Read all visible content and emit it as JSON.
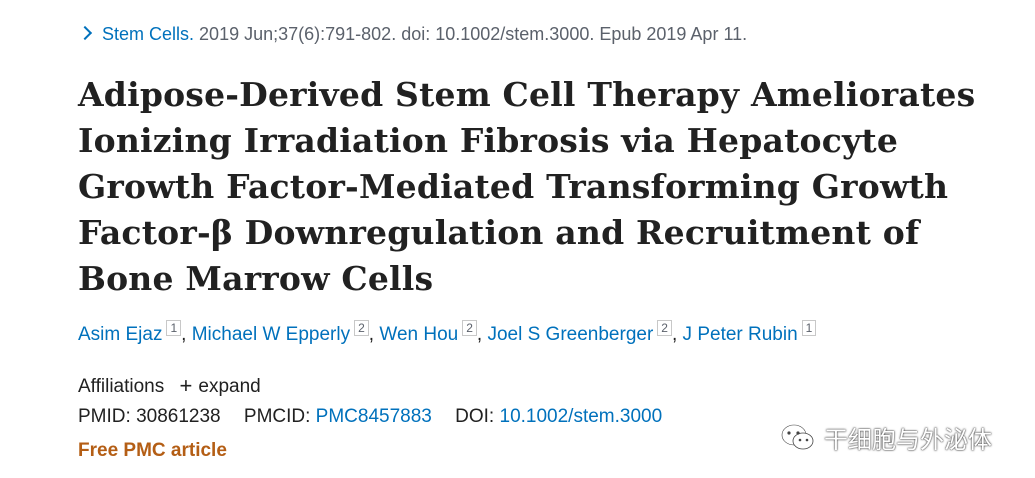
{
  "citation": {
    "journal": "Stem Cells.",
    "details": "2019 Jun;37(6):791-802. doi: 10.1002/stem.3000. Epub 2019 Apr 11."
  },
  "title": "Adipose-Derived Stem Cell Therapy Ameliorates Ionizing Irradiation Fibrosis via Hepatocyte Growth Factor-Mediated Transforming Growth Factor-β Downregulation and Recruitment of Bone Marrow Cells",
  "authors": [
    {
      "name": "Asim Ejaz",
      "aff": "1"
    },
    {
      "name": "Michael W Epperly",
      "aff": "2"
    },
    {
      "name": "Wen Hou",
      "aff": "2"
    },
    {
      "name": "Joel S Greenberger",
      "aff": "2"
    },
    {
      "name": "J Peter Rubin",
      "aff": "1"
    }
  ],
  "affiliations": {
    "label": "Affiliations",
    "expand_symbol": "+",
    "expand_label": "expand"
  },
  "ids": {
    "pmid_label": "PMID:",
    "pmid": "30861238",
    "pmcid_label": "PMCID:",
    "pmcid": "PMC8457883",
    "doi_label": "DOI:",
    "doi": "10.1002/stem.3000"
  },
  "free_label": "Free PMC article",
  "watermark": {
    "text": "干细胞与外泌体",
    "icon": "wechat-icon"
  },
  "colors": {
    "link": "#0071bc",
    "free": "#b45e15",
    "text": "#212121",
    "muted": "#5b616b"
  }
}
